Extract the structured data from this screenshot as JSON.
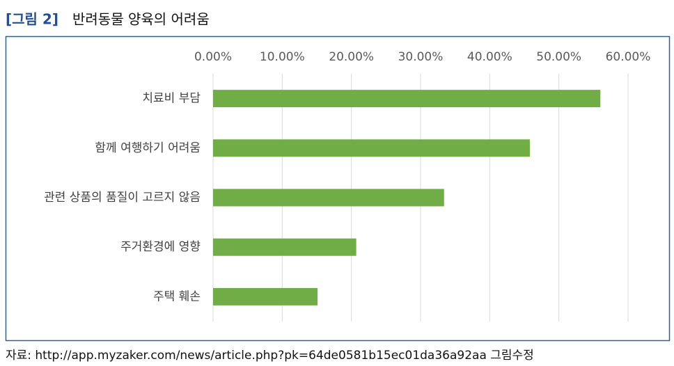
{
  "chart_data": {
    "type": "bar",
    "orientation": "horizontal",
    "figure_label": "[그림 2]",
    "title": "반려동물 양육의 어려움",
    "categories": [
      "치료비 부담",
      "함께 여행하기 어려움",
      "관련 상품의 품질이 고르지 않음",
      "주거환경에 영향",
      "주택 훼손"
    ],
    "values": [
      56,
      45.8,
      33.4,
      20.7,
      15.1
    ],
    "color": "#70ad47",
    "xlim": [
      0,
      60
    ],
    "xticks": [
      {
        "value": 0,
        "label": "0.00%"
      },
      {
        "value": 10,
        "label": "10.00%"
      },
      {
        "value": 20,
        "label": "20.00%"
      },
      {
        "value": 30,
        "label": "30.00%"
      },
      {
        "value": 40,
        "label": "40.00%"
      },
      {
        "value": 50,
        "label": "50.00%"
      },
      {
        "value": 60,
        "label": "60.00%"
      }
    ],
    "grid": true,
    "source": "자료: http://app.myzaker.com/news/article.php?pk=64de0581b15ec01da36a92aa 그림수정"
  }
}
